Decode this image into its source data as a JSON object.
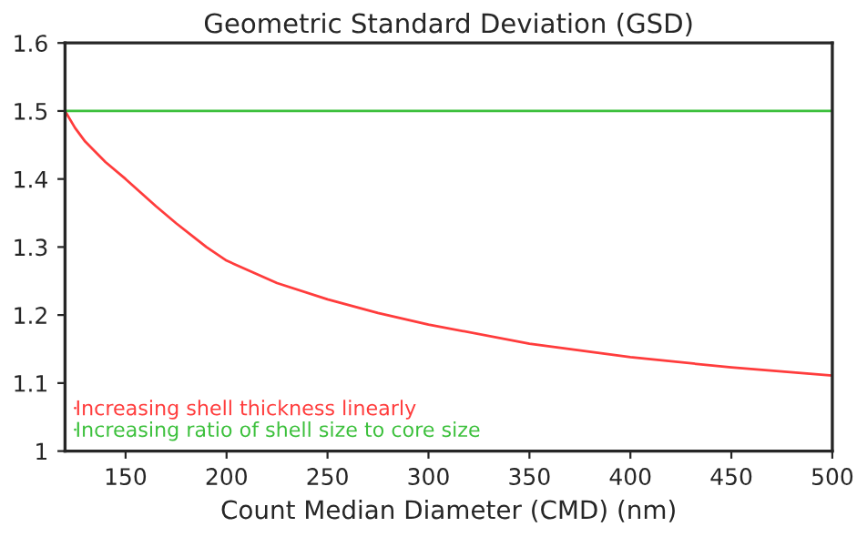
{
  "chart_data": {
    "type": "line",
    "title": "Geometric Standard Deviation (GSD)",
    "xlabel": "Count Median Diameter (CMD) (nm)",
    "series": [
      {
        "name": "Increasing shell thickness linearly",
        "color": "#ff3c3c",
        "x": [
          120,
          125,
          130,
          140,
          150,
          165,
          175,
          190,
          200,
          225,
          250,
          275,
          300,
          350,
          400,
          450,
          500
        ],
        "values": [
          1.5,
          1.475,
          1.455,
          1.425,
          1.4,
          1.36,
          1.335,
          1.3,
          1.28,
          1.247,
          1.223,
          1.203,
          1.186,
          1.158,
          1.138,
          1.123,
          1.111
        ]
      },
      {
        "name": "Increasing ratio of shell size to core size",
        "color": "#3cc03c",
        "x": [
          120,
          500
        ],
        "values": [
          1.5,
          1.5
        ]
      }
    ],
    "xlim": [
      120,
      500
    ],
    "xticks": [
      150,
      200,
      250,
      300,
      350,
      400,
      450,
      500
    ],
    "ylim": [
      1,
      1.6
    ],
    "yticks": [
      1,
      1.1,
      1.2,
      1.3,
      1.4,
      1.5,
      1.6
    ],
    "legend": "bottom left",
    "grid": false,
    "marker": "none",
    "line_style": "solid"
  }
}
